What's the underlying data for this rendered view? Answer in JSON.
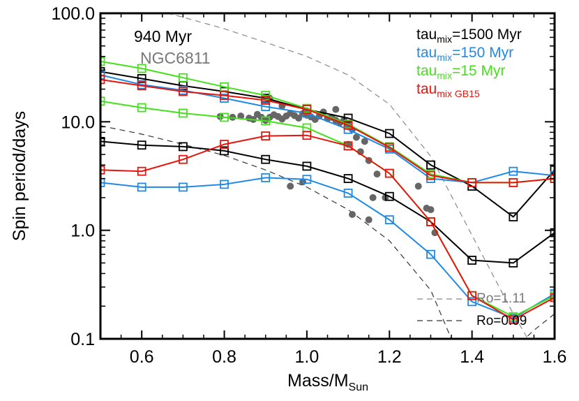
{
  "chart_data": {
    "type": "line",
    "title": "",
    "xlabel_main": "Mass/M",
    "xlabel_sub": "Sun",
    "ylabel": "Spin period/days",
    "xlim": [
      0.5,
      1.6
    ],
    "ylim": [
      0.1,
      100
    ],
    "yscale": "log",
    "x_ticks": [
      {
        "value": 0.6,
        "label": "0.6"
      },
      {
        "value": 0.8,
        "label": "0.8"
      },
      {
        "value": 1.0,
        "label": "1.0"
      },
      {
        "value": 1.2,
        "label": "1.2"
      },
      {
        "value": 1.4,
        "label": "1.4"
      },
      {
        "value": 1.6,
        "label": "1.6"
      }
    ],
    "y_ticks": [
      {
        "value": 0.1,
        "label": "0.1"
      },
      {
        "value": 1.0,
        "label": "1.0"
      },
      {
        "value": 10.0,
        "label": "10.0"
      },
      {
        "value": 100.0,
        "label": "100.0"
      }
    ],
    "annotations": {
      "age": "940 Myr",
      "cluster": "NGC6811"
    },
    "legend": [
      {
        "main": "tau",
        "sub": "mix",
        "rest": "=1500 Myr",
        "color": "#000000"
      },
      {
        "main": "tau",
        "sub": "mix",
        "rest": "=150 Myr",
        "color": "#1f8ae6"
      },
      {
        "main": "tau",
        "sub": "mix",
        "rest": "=15 Myr",
        "color": "#44e01c"
      },
      {
        "main": "tau",
        "sub": "mix GB15",
        "rest": "",
        "color": "#e8140c"
      }
    ],
    "rossby_labels": [
      {
        "text": "Ro=1.11",
        "color": "#777777"
      },
      {
        "text": "Ro=0.09",
        "color": "#000000"
      }
    ],
    "x": [
      0.5,
      0.6,
      0.7,
      0.8,
      0.9,
      1.0,
      1.1,
      1.2,
      1.3,
      1.4,
      1.5,
      1.6
    ],
    "series": [
      {
        "name": "tau_mix=1500 Myr (slow)",
        "color": "#000000",
        "x": [
          0.5,
          0.6,
          0.7,
          0.8,
          0.9,
          1.0,
          1.1,
          1.2,
          1.3,
          1.4,
          1.5,
          1.6
        ],
        "values": [
          29,
          25,
          21.5,
          19,
          16.5,
          13,
          10.8,
          7.8,
          4.0,
          2.55,
          1.33,
          3.6
        ]
      },
      {
        "name": "tau_mix=1500 Myr (fast)",
        "color": "#000000",
        "x": [
          0.5,
          0.6,
          0.7,
          0.8,
          0.9,
          1.0,
          1.1,
          1.2,
          1.3,
          1.4,
          1.5,
          1.6
        ],
        "values": [
          6.6,
          6.1,
          5.9,
          5.4,
          4.5,
          3.9,
          3.0,
          2.05,
          1.2,
          0.53,
          0.5,
          0.95
        ]
      },
      {
        "name": "tau_mix=150 Myr (slow)",
        "color": "#1f8ae6",
        "x": [
          0.5,
          0.6,
          0.7,
          0.8,
          0.9,
          1.0,
          1.1,
          1.2,
          1.3,
          1.4,
          1.5,
          1.6
        ],
        "values": [
          27,
          22,
          19.5,
          16.5,
          13.8,
          12,
          8.5,
          5.6,
          3.0,
          2.75,
          3.5,
          3.2
        ]
      },
      {
        "name": "tau_mix=150 Myr (fast)",
        "color": "#1f8ae6",
        "x": [
          0.5,
          0.6,
          0.7,
          0.8,
          0.9,
          1.0,
          1.1,
          1.2,
          1.3,
          1.4,
          1.5,
          1.6
        ],
        "values": [
          2.75,
          2.5,
          2.5,
          2.65,
          3.05,
          2.95,
          2.2,
          1.25,
          0.6,
          0.22,
          0.155,
          0.26
        ]
      },
      {
        "name": "tau_mix=15 Myr (slow)",
        "color": "#44e01c",
        "x": [
          0.5,
          0.6,
          0.7,
          0.8,
          0.9,
          1.0,
          1.1,
          1.2,
          1.3,
          1.4,
          1.5,
          1.6
        ],
        "values": [
          36,
          31,
          25.5,
          21,
          17.5,
          13.3,
          9.5,
          5.9,
          3.3,
          2.75,
          2.75,
          3.0
        ]
      },
      {
        "name": "tau_mix=15 Myr (fast)",
        "color": "#44e01c",
        "x": [
          0.5,
          0.6,
          0.7,
          0.8,
          0.9,
          1.0,
          1.1,
          1.2,
          1.3,
          1.4,
          1.5,
          1.6
        ],
        "values": [
          15.5,
          13.5,
          12,
          11,
          10.2,
          8.8,
          6.0,
          3.35,
          1.2,
          0.25,
          0.16,
          0.25
        ]
      },
      {
        "name": "tau_mix GB15 (slow)",
        "color": "#e8140c",
        "x": [
          0.5,
          0.6,
          0.7,
          0.8,
          0.9,
          1.0,
          1.1,
          1.2,
          1.3,
          1.4,
          1.5,
          1.6
        ],
        "values": [
          24.5,
          21.5,
          19,
          17.5,
          15.8,
          13,
          9.3,
          5.8,
          3.2,
          2.75,
          2.75,
          3.0
        ]
      },
      {
        "name": "tau_mix GB15 (fast)",
        "color": "#e8140c",
        "x": [
          0.5,
          0.6,
          0.7,
          0.8,
          0.9,
          1.0,
          1.1,
          1.2,
          1.3,
          1.4,
          1.5,
          1.6
        ],
        "values": [
          3.6,
          3.5,
          4.5,
          6.2,
          7.4,
          7.5,
          6.0,
          3.35,
          1.2,
          0.25,
          0.15,
          0.24
        ]
      }
    ],
    "observations": {
      "name": "NGC6811",
      "color": "#666666",
      "points": [
        [
          0.79,
          11.2
        ],
        [
          0.82,
          11.0
        ],
        [
          0.84,
          11.3
        ],
        [
          0.86,
          10.8
        ],
        [
          0.87,
          10.5
        ],
        [
          0.88,
          11.7
        ],
        [
          0.89,
          11.0
        ],
        [
          0.9,
          10.3
        ],
        [
          0.91,
          11.0
        ],
        [
          0.92,
          11.6
        ],
        [
          0.93,
          11.2
        ],
        [
          0.94,
          10.6
        ],
        [
          0.95,
          11.3
        ],
        [
          0.96,
          12.0
        ],
        [
          0.97,
          11.4
        ],
        [
          0.98,
          10.8
        ],
        [
          0.99,
          11.9
        ],
        [
          1.0,
          11.5
        ],
        [
          1.01,
          11.1
        ],
        [
          1.02,
          10.5
        ],
        [
          1.03,
          11.3
        ],
        [
          1.04,
          12.3
        ],
        [
          1.05,
          10.7
        ],
        [
          1.06,
          11.0
        ],
        [
          1.07,
          10.3
        ],
        [
          1.08,
          9.8
        ],
        [
          1.09,
          10.4
        ],
        [
          1.1,
          9.3
        ],
        [
          1.11,
          8.5
        ],
        [
          1.12,
          7.2
        ],
        [
          1.1,
          6.2
        ],
        [
          1.13,
          5.3
        ],
        [
          1.15,
          4.4
        ],
        [
          1.14,
          6.6
        ],
        [
          1.17,
          3.3
        ],
        [
          1.19,
          2.0
        ],
        [
          1.16,
          2.0
        ],
        [
          1.11,
          1.4
        ],
        [
          1.15,
          1.25
        ],
        [
          0.96,
          2.55
        ],
        [
          0.99,
          2.8
        ],
        [
          1.27,
          2.55
        ],
        [
          1.29,
          1.6
        ],
        [
          1.31,
          0.95
        ],
        [
          1.3,
          1.55
        ],
        [
          0.91,
          16.5
        ],
        [
          0.94,
          14.0
        ],
        [
          1.0,
          12.6
        ],
        [
          1.07,
          13.0
        ]
      ]
    },
    "rossby_curves": [
      {
        "name": "Ro=1.11",
        "color": "#888888",
        "dash": "8,6",
        "x": [
          0.5,
          0.6,
          0.7,
          0.8,
          0.9,
          1.0,
          1.1,
          1.2,
          1.3,
          1.4,
          1.5,
          1.55
        ],
        "values": [
          140,
          115,
          92,
          72,
          54,
          40,
          27,
          14.5,
          4.8,
          0.9,
          0.17,
          0.08
        ]
      },
      {
        "name": "Ro=0.09",
        "color": "#333333",
        "dash": "8,6",
        "x": [
          0.5,
          0.6,
          0.7,
          0.8,
          0.9,
          1.0,
          1.1,
          1.2,
          1.3,
          1.35
        ],
        "values": [
          9.2,
          7.7,
          6.2,
          4.9,
          3.6,
          2.5,
          1.55,
          0.8,
          0.28,
          0.1
        ]
      },
      {
        "name": "Ro=0.09 right",
        "color": "#333333",
        "dash": "8,6",
        "x": [
          1.5,
          1.55,
          1.6
        ],
        "values": [
          0.08,
          0.12,
          0.17
        ]
      }
    ]
  }
}
